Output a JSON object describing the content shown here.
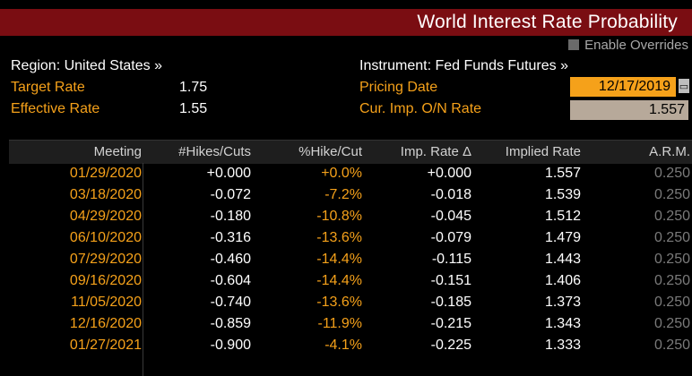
{
  "title": "World Interest Rate Probability",
  "overrides": {
    "label": "Enable Overrides"
  },
  "region": {
    "label": "Region: United States »"
  },
  "instrument": {
    "label": "Instrument: Fed Funds Futures »"
  },
  "target_rate": {
    "label": "Target Rate",
    "value": "1.75"
  },
  "effective_rate": {
    "label": "Effective Rate",
    "value": "1.55"
  },
  "pricing_date": {
    "label": "Pricing Date",
    "value": "12/17/2019"
  },
  "imp_rate": {
    "label": "Cur. Imp. O/N Rate",
    "value": "1.557"
  },
  "table": {
    "headers": [
      "Meeting",
      "#Hikes/Cuts",
      "%Hike/Cut",
      "Imp. Rate Δ",
      "Implied Rate",
      "A.R.M."
    ],
    "rows": [
      [
        "01/29/2020",
        "+0.000",
        "+0.0%",
        "+0.000",
        "1.557",
        "0.250"
      ],
      [
        "03/18/2020",
        "-0.072",
        "-7.2%",
        "-0.018",
        "1.539",
        "0.250"
      ],
      [
        "04/29/2020",
        "-0.180",
        "-10.8%",
        "-0.045",
        "1.512",
        "0.250"
      ],
      [
        "06/10/2020",
        "-0.316",
        "-13.6%",
        "-0.079",
        "1.479",
        "0.250"
      ],
      [
        "07/29/2020",
        "-0.460",
        "-14.4%",
        "-0.115",
        "1.443",
        "0.250"
      ],
      [
        "09/16/2020",
        "-0.604",
        "-14.4%",
        "-0.151",
        "1.406",
        "0.250"
      ],
      [
        "11/05/2020",
        "-0.740",
        "-13.6%",
        "-0.185",
        "1.373",
        "0.250"
      ],
      [
        "12/16/2020",
        "-0.859",
        "-11.9%",
        "-0.215",
        "1.343",
        "0.250"
      ],
      [
        "01/27/2021",
        "-0.900",
        "-4.1%",
        "-0.225",
        "1.333",
        "0.250"
      ]
    ]
  },
  "colors": {
    "title_bg": "#7a0d12",
    "accent": "#f5a11a",
    "background": "#000000"
  }
}
